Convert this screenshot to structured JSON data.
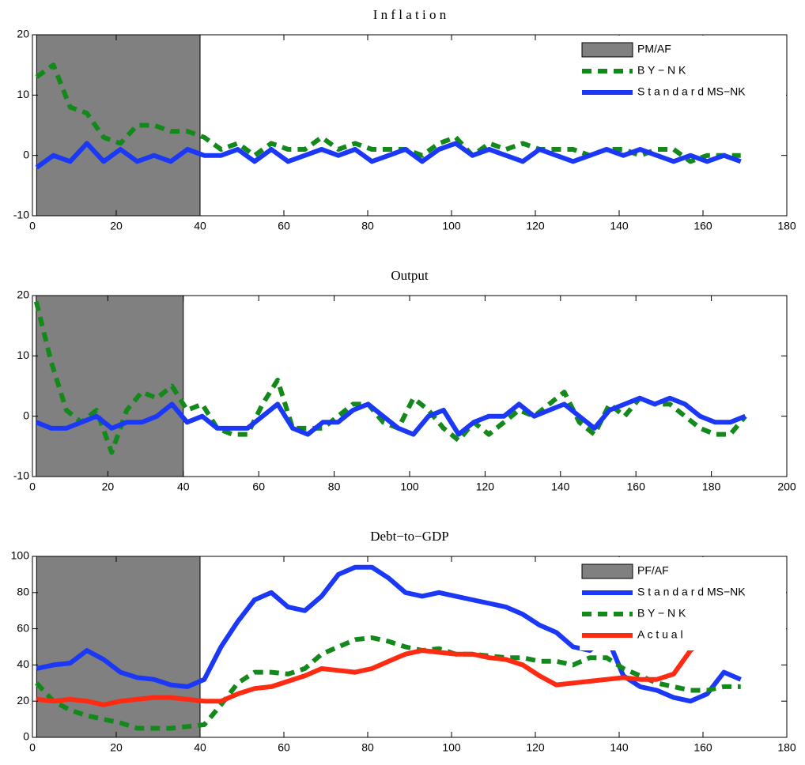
{
  "chart_data": [
    {
      "type": "line",
      "title": "I n f l a t i o n",
      "x": [
        1,
        5,
        9,
        13,
        17,
        21,
        25,
        29,
        33,
        37,
        41,
        45,
        49,
        53,
        57,
        61,
        65,
        69,
        73,
        77,
        81,
        85,
        89,
        93,
        97,
        101,
        105,
        109,
        113,
        117,
        121,
        125,
        129,
        133,
        137,
        141,
        145,
        149,
        153,
        157,
        161,
        165,
        169
      ],
      "series": [
        {
          "name": "B Y − N K",
          "color": "#14891b",
          "style": "dashed",
          "values": [
            13,
            15,
            8,
            7,
            3,
            2,
            5,
            5,
            4,
            4,
            3,
            1,
            2,
            0,
            2,
            1,
            1,
            3,
            1,
            2,
            1,
            1,
            1,
            0,
            2,
            3,
            0,
            2,
            1,
            2,
            1,
            1,
            1,
            0,
            1,
            1,
            0,
            1,
            1,
            -1,
            0,
            0,
            0
          ]
        },
        {
          "name": "S t a n d a r d MS−NK",
          "color": "#1a38f5",
          "style": "solid",
          "values": [
            -2,
            0,
            -1,
            2,
            -1,
            1,
            -1,
            0,
            -1,
            1,
            0,
            0,
            1,
            -1,
            1,
            -1,
            0,
            1,
            0,
            1,
            -1,
            0,
            1,
            -1,
            1,
            2,
            0,
            1,
            0,
            -1,
            1,
            0,
            -1,
            0,
            1,
            0,
            1,
            0,
            -1,
            0,
            -1,
            0,
            -1
          ]
        }
      ],
      "shade": {
        "name": "PM/AF",
        "range": [
          1,
          40
        ],
        "color": "#808080"
      },
      "xlim": [
        0,
        180
      ],
      "xticks": [
        0,
        20,
        40,
        60,
        80,
        100,
        120,
        140,
        160,
        180
      ],
      "ylim": [
        -10,
        20
      ],
      "yticks": [
        -10,
        0,
        10,
        20
      ],
      "legend": "upper right"
    },
    {
      "type": "line",
      "title": "Output",
      "x": [
        1,
        5,
        9,
        13,
        17,
        21,
        25,
        29,
        33,
        37,
        41,
        45,
        49,
        53,
        57,
        61,
        65,
        69,
        73,
        77,
        81,
        85,
        89,
        93,
        97,
        101,
        105,
        109,
        113,
        117,
        121,
        125,
        129,
        133,
        137,
        141,
        145,
        149,
        153,
        157,
        161,
        165,
        169,
        173,
        177,
        181,
        185,
        189
      ],
      "series": [
        {
          "color": "#14891b",
          "style": "dashed",
          "values": [
            19,
            9,
            1,
            -1,
            1,
            -6,
            1,
            4,
            3,
            5,
            1,
            2,
            -2,
            -3,
            -3,
            2,
            6,
            -2,
            -2,
            -2,
            0,
            2,
            2,
            -1,
            -2,
            3,
            1,
            -2,
            -4,
            -1,
            -3,
            -1,
            1,
            0,
            2,
            4,
            -1,
            -3,
            2,
            0,
            3,
            2,
            2,
            0,
            -2,
            -3,
            -3,
            0
          ]
        },
        {
          "color": "#1a38f5",
          "style": "solid",
          "values": [
            -1,
            -2,
            -2,
            -1,
            0,
            -2,
            -1,
            -1,
            0,
            2,
            -1,
            0,
            -2,
            -2,
            -2,
            0,
            2,
            -2,
            -3,
            -1,
            -1,
            1,
            2,
            0,
            -2,
            -3,
            0,
            1,
            -3,
            -1,
            0,
            0,
            2,
            0,
            1,
            2,
            0,
            -2,
            1,
            2,
            3,
            2,
            3,
            2,
            0,
            -1,
            -1,
            0
          ]
        }
      ],
      "shade": {
        "range": [
          1,
          40
        ],
        "color": "#808080"
      },
      "xlim": [
        0,
        200
      ],
      "xticks": [
        0,
        20,
        40,
        60,
        80,
        100,
        120,
        140,
        160,
        180,
        200
      ],
      "ylim": [
        -10,
        20
      ],
      "yticks": [
        -10,
        0,
        10,
        20
      ]
    },
    {
      "type": "line",
      "title": "Debt−to−GDP",
      "x": [
        1,
        5,
        9,
        13,
        17,
        21,
        25,
        29,
        33,
        37,
        41,
        45,
        49,
        53,
        57,
        61,
        65,
        69,
        73,
        77,
        81,
        85,
        89,
        93,
        97,
        101,
        105,
        109,
        113,
        117,
        121,
        125,
        129,
        133,
        137,
        141,
        145,
        149,
        153,
        157,
        161,
        165,
        169
      ],
      "series": [
        {
          "name": "S t a n d a r d MS−NK",
          "color": "#1a38f5",
          "style": "solid",
          "values": [
            38,
            40,
            41,
            48,
            43,
            36,
            33,
            32,
            29,
            28,
            32,
            50,
            64,
            76,
            80,
            72,
            70,
            78,
            90,
            94,
            94,
            88,
            80,
            78,
            80,
            78,
            76,
            74,
            72,
            68,
            62,
            58,
            50,
            48,
            56,
            34,
            28,
            26,
            22,
            20,
            24,
            36,
            32
          ]
        },
        {
          "name": "B Y − N K",
          "color": "#14891b",
          "style": "dashed",
          "values": [
            30,
            20,
            15,
            12,
            10,
            8,
            5,
            5,
            5,
            6,
            7,
            18,
            30,
            36,
            36,
            35,
            38,
            46,
            50,
            54,
            55,
            53,
            50,
            48,
            49,
            46,
            46,
            45,
            44,
            44,
            42,
            42,
            40,
            44,
            44,
            38,
            34,
            30,
            28,
            26,
            26,
            28,
            28
          ]
        },
        {
          "name": "A c t u a l",
          "color": "#ff2a12",
          "style": "solid",
          "values": [
            21,
            20,
            21,
            20,
            18,
            20,
            21,
            22,
            22,
            21,
            20,
            20,
            24,
            27,
            28,
            31,
            34,
            38,
            37,
            36,
            38,
            42,
            46,
            48,
            47,
            46,
            46,
            44,
            43,
            40,
            34,
            29,
            30,
            31,
            32,
            33,
            32,
            32,
            35,
            48,
            55,
            null,
            null
          ]
        }
      ],
      "shade": {
        "name": "PF/AF",
        "range": [
          1,
          40
        ],
        "color": "#808080"
      },
      "xlim": [
        0,
        180
      ],
      "xticks": [
        0,
        20,
        40,
        60,
        80,
        100,
        120,
        140,
        160,
        180
      ],
      "ylim": [
        0,
        100
      ],
      "yticks": [
        0,
        20,
        40,
        60,
        80,
        100
      ],
      "legend": "upper right"
    }
  ]
}
